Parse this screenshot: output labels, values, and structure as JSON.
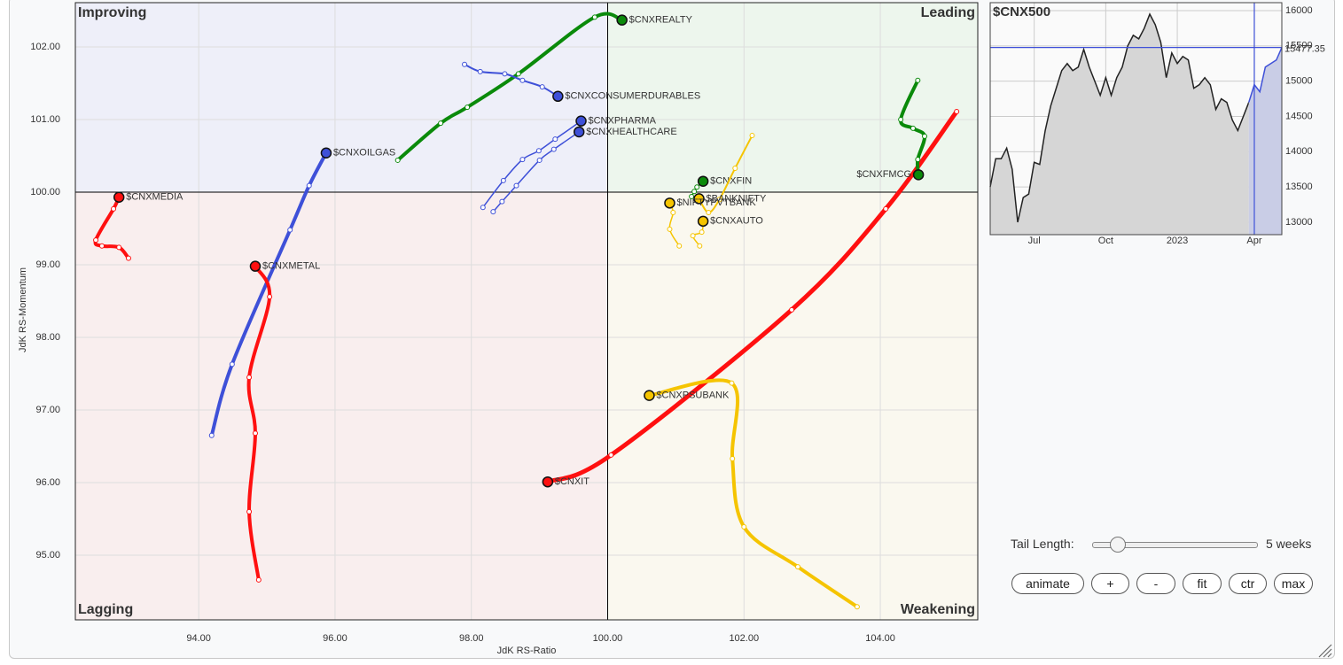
{
  "chart_data": [
    {
      "type": "rrg",
      "x_label": "JdK RS-Ratio",
      "y_label": "JdK RS-Momentum",
      "xlim": [
        92.19,
        105.43
      ],
      "ylim": [
        94.11,
        102.61
      ],
      "center": [
        100,
        100
      ],
      "grid": true,
      "xticks": [
        {
          "value": 94,
          "label": "94.00"
        },
        {
          "value": 96,
          "label": "96.00"
        },
        {
          "value": 98,
          "label": "98.00"
        },
        {
          "value": 100,
          "label": "100.00"
        },
        {
          "value": 102,
          "label": "102.00"
        },
        {
          "value": 104,
          "label": "104.00"
        }
      ],
      "yticks": [
        {
          "value": 95,
          "label": "95.00"
        },
        {
          "value": 96,
          "label": "96.00"
        },
        {
          "value": 97,
          "label": "97.00"
        },
        {
          "value": 98,
          "label": "98.00"
        },
        {
          "value": 99,
          "label": "99.00"
        },
        {
          "value": 100,
          "label": "100.00"
        },
        {
          "value": 101,
          "label": "101.00"
        },
        {
          "value": 102,
          "label": "102.00"
        }
      ],
      "quadrants": [
        {
          "name": "Improving",
          "color": "#8a9ae8",
          "background": "#eeeff9"
        },
        {
          "name": "Leading",
          "color": "#6cbf6c",
          "background": "#edf6ed"
        },
        {
          "name": "Lagging",
          "color": "#f59a9a",
          "background": "#f9eeee"
        },
        {
          "name": "Weakening",
          "color": "#f0c23a",
          "background": "#faf8ef"
        }
      ],
      "series": [
        {
          "name": "$CNXREALTY",
          "color": "#0a8a0a",
          "width": 4,
          "x": [
            96.92,
            97.55,
            97.94,
            98.69,
            99.81,
            100.21
          ],
          "y": [
            100.44,
            100.95,
            101.17,
            101.63,
            102.41,
            102.37
          ]
        },
        {
          "name": "$CNXCONSUMERDURABLES",
          "color": "#3e50d8",
          "width": 2,
          "x": [
            97.9,
            98.13,
            98.49,
            98.75,
            99.04,
            99.27
          ],
          "y": [
            101.76,
            101.66,
            101.63,
            101.54,
            101.45,
            101.32
          ]
        },
        {
          "name": "$CNXPHARMA",
          "color": "#3e50d8",
          "width": 1.5,
          "x": [
            98.17,
            98.47,
            98.75,
            98.99,
            99.23,
            99.61
          ],
          "y": [
            99.79,
            100.16,
            100.45,
            100.57,
            100.73,
            100.98
          ]
        },
        {
          "name": "$CNXHEALTHCARE",
          "color": "#3e50d8",
          "width": 1.5,
          "x": [
            98.32,
            98.45,
            98.66,
            99.0,
            99.21,
            99.58
          ],
          "y": [
            99.73,
            99.87,
            100.09,
            100.44,
            100.59,
            100.83
          ]
        },
        {
          "name": "$CNXOILGAS",
          "color": "#3e50d8",
          "width": 4,
          "x": [
            94.19,
            94.49,
            95.34,
            95.62,
            95.87
          ],
          "y": [
            96.65,
            97.63,
            99.48,
            100.09,
            100.54
          ]
        },
        {
          "name": "$CNXMEDIA",
          "color": "#ff1010",
          "width": 4,
          "x": [
            92.97,
            92.83,
            92.58,
            92.49,
            92.75,
            92.83
          ],
          "y": [
            99.09,
            99.24,
            99.26,
            99.34,
            99.77,
            99.93
          ]
        },
        {
          "name": "$CNXMETAL",
          "color": "#ff1010",
          "width": 4,
          "x": [
            94.88,
            94.74,
            94.83,
            94.74,
            95.04,
            94.83
          ],
          "y": [
            94.66,
            95.6,
            96.68,
            97.45,
            98.56,
            98.98
          ]
        },
        {
          "name": "$CNXIT",
          "color": "#ff1010",
          "width": 5,
          "x": [
            105.12,
            104.08,
            102.7,
            100.05,
            99.12
          ],
          "y": [
            101.11,
            99.77,
            98.38,
            96.38,
            96.01
          ]
        },
        {
          "name": "$CNXFMCG",
          "color": "#0a8a0a",
          "width": 4,
          "x": [
            104.55,
            104.3,
            104.48,
            104.65,
            104.55,
            104.56
          ],
          "y": [
            101.54,
            101.0,
            100.88,
            100.77,
            100.45,
            100.24
          ]
        },
        {
          "name": "$CNXFIN",
          "color": "#0a8a0a",
          "width": 1.5,
          "x": [
            101.23,
            101.27,
            101.31,
            101.4
          ],
          "y": [
            99.94,
            100.01,
            100.07,
            100.15
          ]
        },
        {
          "name": "$BANKNIFTY",
          "color": "#f5c400",
          "width": 2,
          "x": [
            102.12,
            101.87,
            101.64,
            101.48,
            101.34
          ],
          "y": [
            100.78,
            100.33,
            99.9,
            99.72,
            99.91
          ]
        },
        {
          "name": "$NIFTYPVTBANK",
          "color": "#f5c400",
          "width": 1.5,
          "x": [
            101.05,
            100.91,
            100.96,
            100.91
          ],
          "y": [
            99.26,
            99.49,
            99.72,
            99.85
          ]
        },
        {
          "name": "$CNXAUTO",
          "color": "#f5c400",
          "width": 1.5,
          "x": [
            101.35,
            101.25,
            101.38,
            101.4
          ],
          "y": [
            99.26,
            99.4,
            99.45,
            99.6
          ]
        },
        {
          "name": "$CNXPSUBANK",
          "color": "#f5c400",
          "width": 4,
          "x": [
            103.66,
            102.79,
            102.0,
            101.83,
            101.82,
            100.61
          ],
          "y": [
            94.29,
            94.84,
            95.39,
            96.33,
            97.37,
            97.2
          ]
        }
      ]
    },
    {
      "type": "line",
      "title": "$CNX500",
      "categories": [
        null,
        null,
        null,
        null,
        null,
        null,
        null,
        null,
        "Jul",
        null,
        null,
        null,
        null,
        null,
        null,
        null,
        null,
        null,
        null,
        null,
        null,
        "Oct",
        null,
        null,
        null,
        null,
        null,
        null,
        null,
        null,
        null,
        null,
        null,
        null,
        "2023",
        null,
        null,
        null,
        null,
        null,
        null,
        null,
        null,
        null,
        null,
        null,
        null,
        null,
        "Apr",
        null,
        null,
        null,
        null,
        null
      ],
      "ylim": [
        12824,
        16113
      ],
      "yticks": [
        13000,
        13500,
        14000,
        14500,
        15000,
        15500,
        16000
      ],
      "grid": true,
      "series": [
        {
          "color": "#222222",
          "values": [
            13500,
            13900,
            13900,
            14050,
            13750,
            13000,
            13350,
            13400,
            13850,
            13820,
            14300,
            14650,
            14900,
            15150,
            15250,
            15150,
            15200,
            15450,
            15200,
            15000,
            14800,
            15050,
            14800,
            15050,
            15200,
            15500,
            15650,
            15600,
            15750,
            15950,
            15800,
            15550,
            15050,
            15400,
            15250,
            15350,
            15300,
            14900,
            14950,
            15050,
            14950,
            14600,
            14750,
            14700,
            14450,
            14300,
            14500,
            14700,
            null,
            null,
            null,
            null,
            null,
            null
          ]
        },
        {
          "color": "#3e50d8",
          "values": [
            null,
            null,
            null,
            null,
            null,
            null,
            null,
            null,
            null,
            null,
            null,
            null,
            null,
            null,
            null,
            null,
            null,
            null,
            null,
            null,
            null,
            null,
            null,
            null,
            null,
            null,
            null,
            null,
            null,
            null,
            null,
            null,
            null,
            null,
            null,
            null,
            null,
            null,
            null,
            null,
            null,
            null,
            null,
            null,
            null,
            null,
            null,
            14700,
            14950,
            14850,
            15200,
            15250,
            15300,
            15477.35
          ]
        }
      ]
    }
  ],
  "controls": {
    "tail_label": "Tail Length:",
    "tail_value": "5 weeks",
    "buttons": [
      "animate",
      "+",
      "-",
      "fit",
      "ctr",
      "max"
    ]
  }
}
